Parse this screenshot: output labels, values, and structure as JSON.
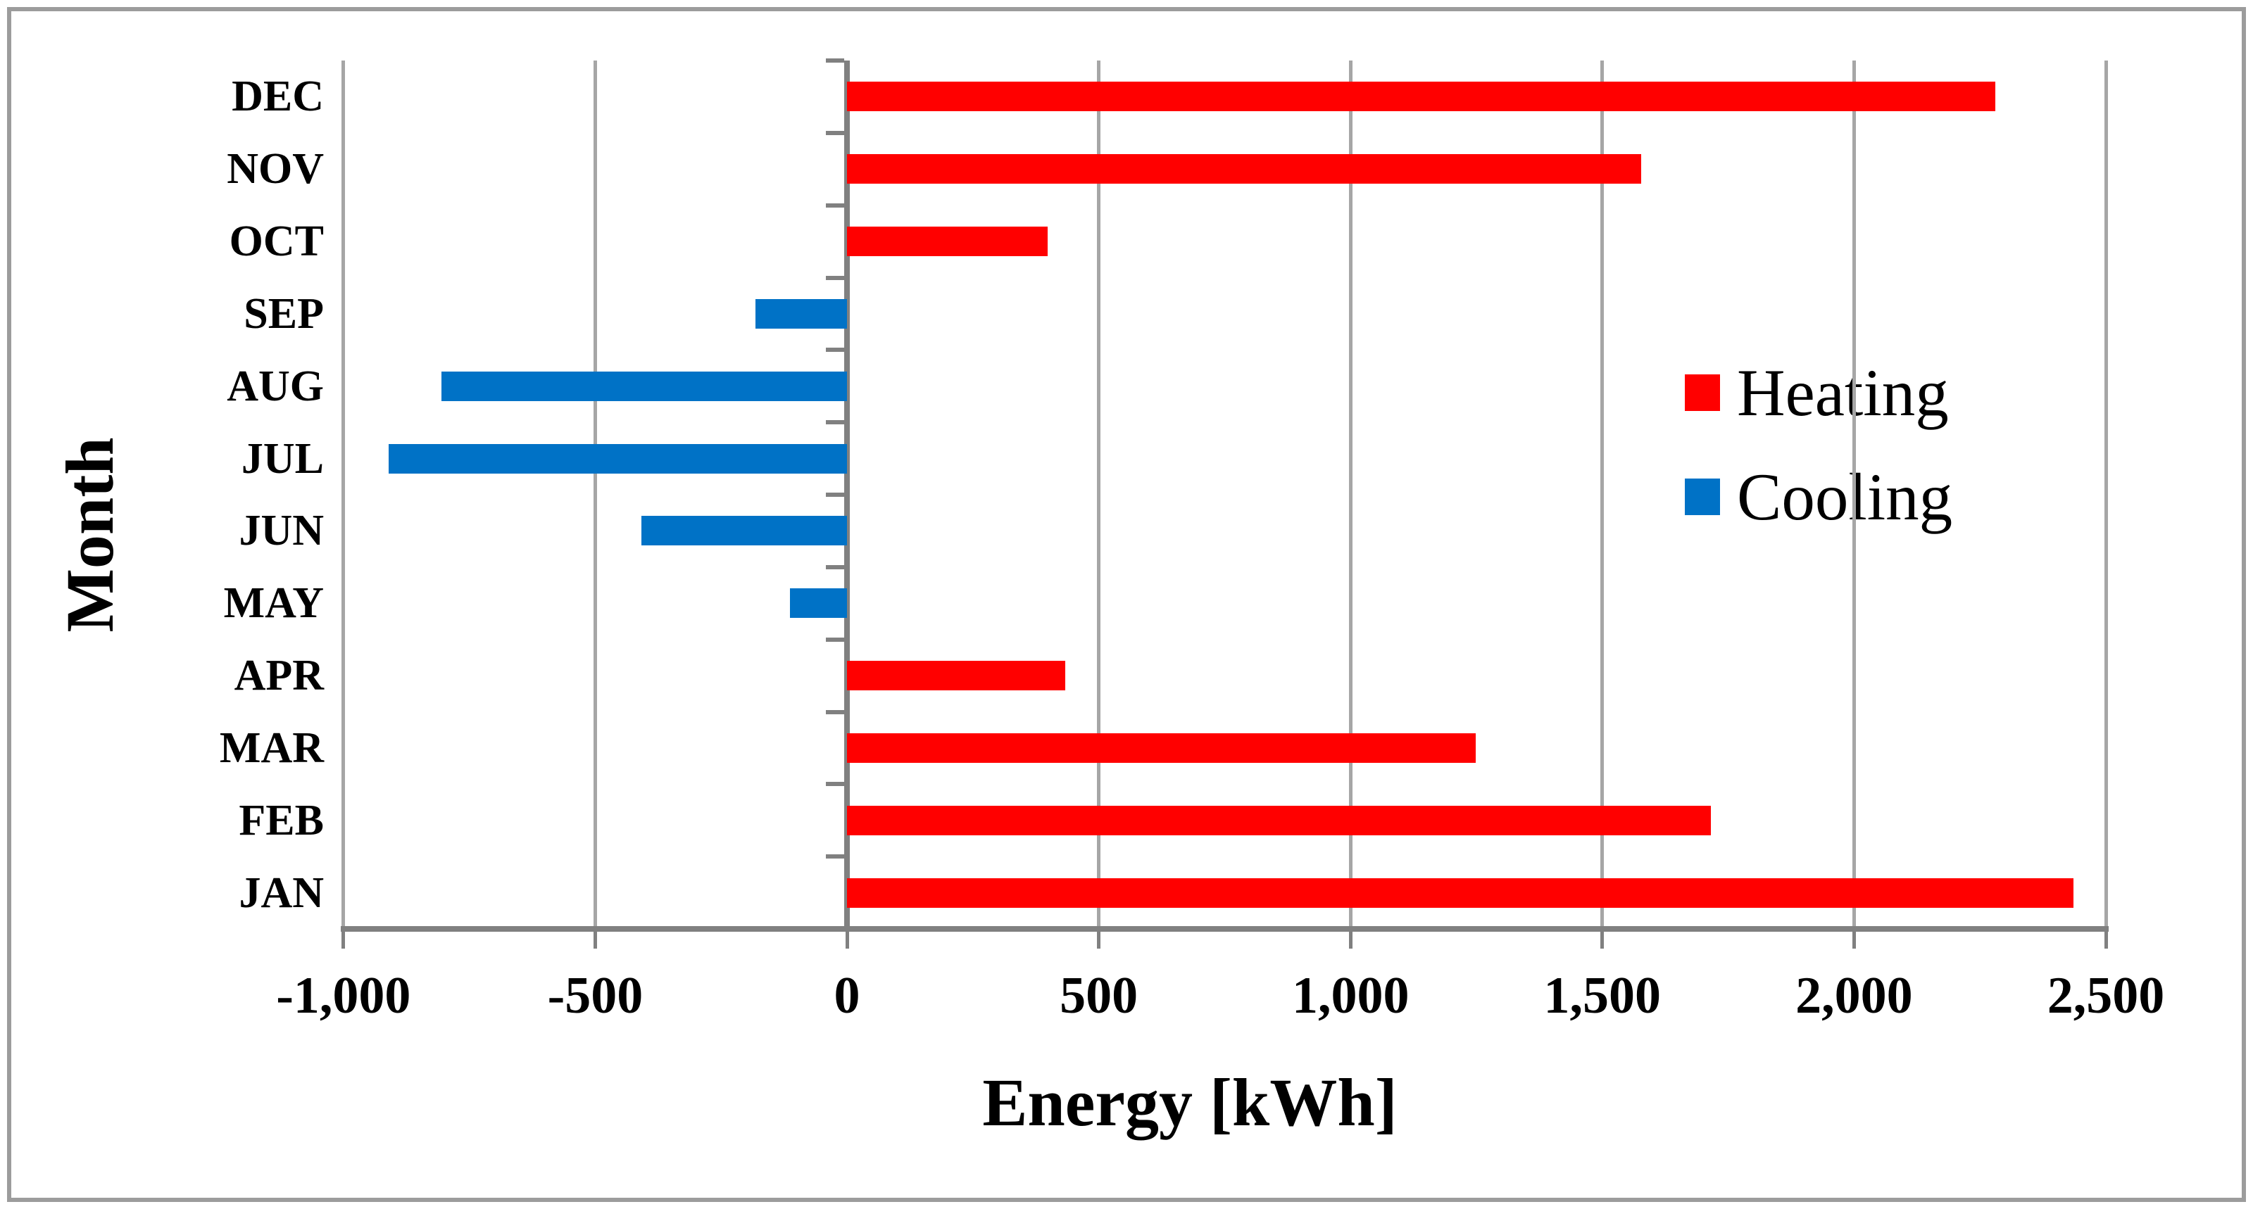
{
  "figure": {
    "background": "#FFFFFF",
    "border_color": "#9C9C9C",
    "gridline_color": "#A6A6A6",
    "axis_color": "#808080",
    "text_color": "#000000"
  },
  "chart_data": {
    "type": "bar",
    "orientation": "horizontal",
    "title": "",
    "xlabel": "Energy [kWh]",
    "ylabel": "Month",
    "categories": [
      "DEC",
      "NOV",
      "OCT",
      "SEP",
      "AUG",
      "JUL",
      "JUN",
      "MAY",
      "APR",
      "MAR",
      "FEB",
      "JAN"
    ],
    "series": [
      {
        "name": "Heating",
        "color": "#FF0000",
        "values": [
          2280,
          1577,
          398,
          null,
          null,
          null,
          null,
          null,
          434,
          1249,
          1715,
          2436
        ]
      },
      {
        "name": "Cooling",
        "color": "#0072C6",
        "values": [
          null,
          null,
          null,
          -182,
          -805,
          -910,
          -408,
          -113,
          null,
          null,
          null,
          null
        ]
      }
    ],
    "xlim": [
      -1000,
      2500
    ],
    "grid": "vertical",
    "legend_position": "middle-right",
    "x_ticks": [
      {
        "value": -1000,
        "label": "-1,000"
      },
      {
        "value": -500,
        "label": "-500"
      },
      {
        "value": 0,
        "label": "0"
      },
      {
        "value": 500,
        "label": "500"
      },
      {
        "value": 1000,
        "label": "1,000"
      },
      {
        "value": 1500,
        "label": "1,500"
      },
      {
        "value": 2000,
        "label": "2,000"
      },
      {
        "value": 2500,
        "label": "2,500"
      }
    ],
    "legend": {
      "items": [
        {
          "label": "Heating",
          "color": "#FF0000"
        },
        {
          "label": "Cooling",
          "color": "#0072C6"
        }
      ]
    }
  }
}
